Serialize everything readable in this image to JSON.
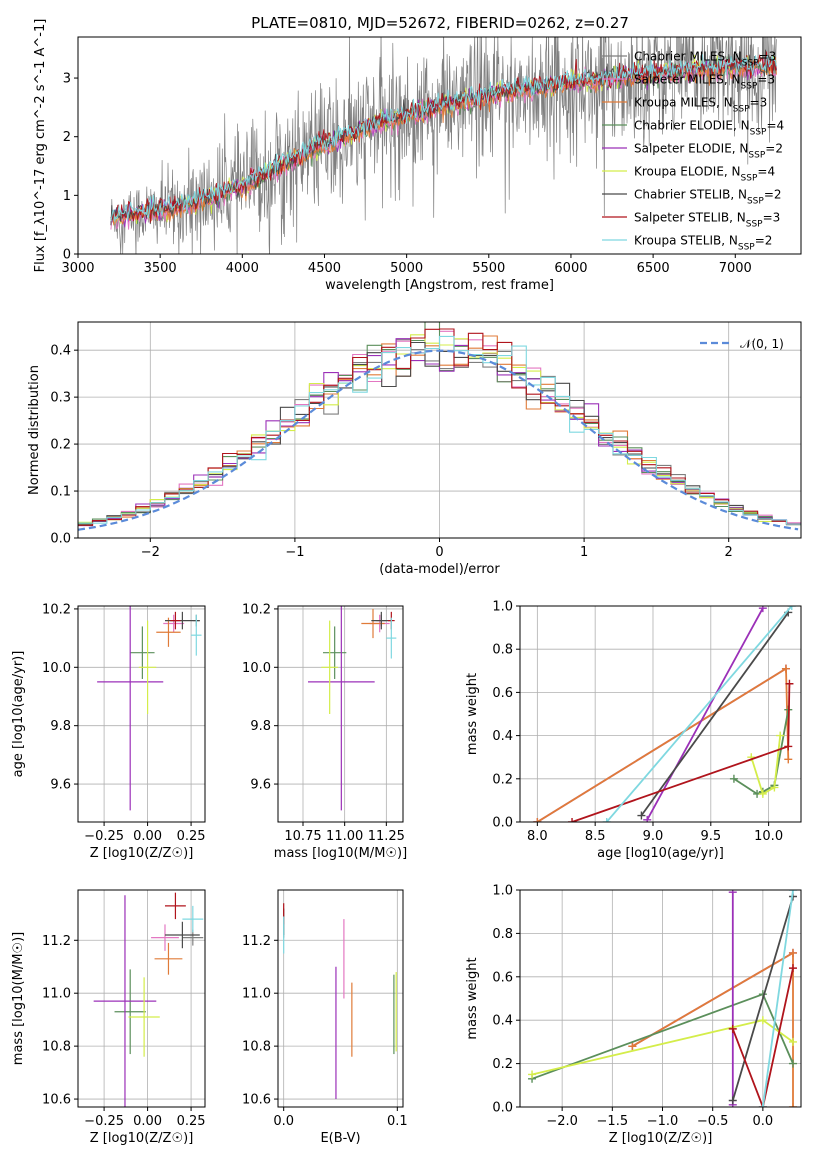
{
  "figure": {
    "title": "PLATE=0810, MJD=52672, FIBERID=0262, z=0.27"
  },
  "models": [
    {
      "name": "Chabrier MILES",
      "nssp": "3",
      "color": "#7f7f7f"
    },
    {
      "name": "Salpeter MILES",
      "nssp": "3",
      "color": "#e377c2"
    },
    {
      "name": "Kroupa MILES",
      "nssp": "3",
      "color": "#e07b39"
    },
    {
      "name": "Chabrier ELODIE",
      "nssp": "4",
      "color": "#5b8f5b"
    },
    {
      "name": "Salpeter ELODIE",
      "nssp": "2",
      "color": "#9b30b8"
    },
    {
      "name": "Kroupa ELODIE",
      "nssp": "4",
      "color": "#d4ed4a"
    },
    {
      "name": "Chabrier STELIB",
      "nssp": "2",
      "color": "#4a4a4a"
    },
    {
      "name": "Salpeter STELIB",
      "nssp": "3",
      "color": "#b0141c"
    },
    {
      "name": "Kroupa STELIB",
      "nssp": "2",
      "color": "#7fd8e0"
    }
  ],
  "chart_data": [
    {
      "id": "spectrum",
      "type": "line",
      "xlabel": "wavelength [Angstrom, rest frame]",
      "ylabel": "Flux [f_λ10^-17 erg cm^-2 s^-1 A^-1]",
      "xlim": [
        3000,
        7400
      ],
      "ylim": [
        0,
        3.7
      ],
      "xticks": [
        "3000",
        "3500",
        "4000",
        "4500",
        "5000",
        "5500",
        "6000",
        "6500",
        "7000"
      ],
      "yticks": [
        "0",
        "1",
        "2",
        "3"
      ],
      "x_range_data": [
        3200,
        7250
      ],
      "continuum": {
        "x": [
          3200,
          3600,
          4000,
          4400,
          4800,
          5200,
          5600,
          6000,
          6400,
          6800,
          7250
        ],
        "y": [
          0.62,
          0.78,
          1.15,
          1.75,
          2.2,
          2.5,
          2.75,
          2.92,
          3.05,
          3.15,
          3.2
        ]
      },
      "legend_position": "upper right"
    },
    {
      "id": "residuals",
      "type": "histogram",
      "xlabel": "(data-model)/error",
      "ylabel": "Normed distribution",
      "xlim": [
        -2.5,
        2.5
      ],
      "ylim": [
        0,
        0.46
      ],
      "xticks": [
        "−2",
        "−1",
        "0",
        "1",
        "2"
      ],
      "yticks": [
        "0.0",
        "0.1",
        "0.2",
        "0.3",
        "0.4"
      ],
      "bin_width": 0.1,
      "reference_curve": "𝒩(0, 1)",
      "reference_color": "#5b8bd9"
    },
    {
      "id": "age_vs_Z",
      "type": "errorbar",
      "xlabel": "Z [log10(Z/Z☉)]",
      "ylabel": "age [log10(age/yr)]",
      "xlim": [
        -0.4,
        0.33
      ],
      "ylim": [
        9.47,
        10.21
      ],
      "xticks": [
        "−0.25",
        "0.00",
        "0.25"
      ],
      "yticks": [
        "9.6",
        "9.8",
        "10.0",
        "10.2"
      ],
      "points": [
        {
          "model": 0,
          "x": 0.28,
          "xerr": 0.02,
          "y": 10.16,
          "yerr": 0.02
        },
        {
          "model": 1,
          "x": 0.15,
          "xerr": 0.06,
          "y": 10.15,
          "yerr": 0.03
        },
        {
          "model": 2,
          "x": 0.12,
          "xerr": 0.07,
          "y": 10.12,
          "yerr": 0.05
        },
        {
          "model": 3,
          "x": -0.03,
          "xerr": 0.07,
          "y": 10.05,
          "yerr": 0.09
        },
        {
          "model": 4,
          "x": -0.1,
          "xerr": 0.19,
          "y": 9.95,
          "yerr": 0.44
        },
        {
          "model": 5,
          "x": -0.0,
          "xerr": 0.05,
          "y": 10.0,
          "yerr": 0.16
        },
        {
          "model": 6,
          "x": 0.2,
          "xerr": 0.1,
          "y": 10.16,
          "yerr": 0.03
        },
        {
          "model": 7,
          "x": 0.16,
          "xerr": 0.03,
          "y": 10.16,
          "yerr": 0.03
        },
        {
          "model": 8,
          "x": 0.28,
          "xerr": 0.03,
          "y": 10.11,
          "yerr": 0.07
        }
      ]
    },
    {
      "id": "age_vs_mass",
      "type": "errorbar",
      "xlabel": "mass [log10(M/M☉)]",
      "ylabel": "",
      "xlim": [
        10.6,
        11.35
      ],
      "ylim": [
        9.47,
        10.21
      ],
      "xticks": [
        "10.75",
        "11.00",
        "11.25"
      ],
      "yticks": [
        "9.6",
        "9.8",
        "10.0",
        "10.2"
      ],
      "points": [
        {
          "model": 0,
          "x": 11.22,
          "xerr": 0.03,
          "y": 10.16,
          "yerr": 0.02
        },
        {
          "model": 1,
          "x": 11.21,
          "xerr": 0.06,
          "y": 10.15,
          "yerr": 0.03
        },
        {
          "model": 2,
          "x": 11.17,
          "xerr": 0.07,
          "y": 10.15,
          "yerr": 0.05
        },
        {
          "model": 3,
          "x": 10.94,
          "xerr": 0.07,
          "y": 10.05,
          "yerr": 0.09
        },
        {
          "model": 4,
          "x": 10.98,
          "xerr": 0.2,
          "y": 9.95,
          "yerr": 0.44
        },
        {
          "model": 5,
          "x": 10.91,
          "xerr": 0.05,
          "y": 10.0,
          "yerr": 0.16
        },
        {
          "model": 6,
          "x": 11.22,
          "xerr": 0.06,
          "y": 10.16,
          "yerr": 0.03
        },
        {
          "model": 7,
          "x": 11.28,
          "xerr": 0.02,
          "y": 10.16,
          "yerr": 0.03
        },
        {
          "model": 8,
          "x": 11.28,
          "xerr": 0.03,
          "y": 10.1,
          "yerr": 0.07
        }
      ]
    },
    {
      "id": "weight_vs_age",
      "type": "line",
      "xlabel": "age [log10(age/yr)]",
      "ylabel": "mass weight",
      "xlim": [
        7.85,
        10.28
      ],
      "ylim": [
        0,
        1.0
      ],
      "xticks": [
        "8.0",
        "8.5",
        "9.0",
        "9.5",
        "10.0"
      ],
      "yticks": [
        "0.0",
        "0.2",
        "0.4",
        "0.6",
        "0.8",
        "1.0"
      ],
      "series": [
        {
          "model": 0,
          "x": [
            8.0,
            10.15
          ],
          "y": [
            0.0,
            0.71
          ]
        },
        {
          "model": 1,
          "x": [
            8.0,
            10.15
          ],
          "y": [
            0.0,
            0.71
          ]
        },
        {
          "model": 2,
          "x": [
            8.0,
            10.15,
            10.17
          ],
          "y": [
            0.0,
            0.71,
            0.29
          ]
        },
        {
          "model": 3,
          "x": [
            9.7,
            9.9,
            9.95,
            10.05,
            10.17
          ],
          "y": [
            0.2,
            0.13,
            0.14,
            0.17,
            0.52
          ]
        },
        {
          "model": 4,
          "x": [
            8.95,
            9.95
          ],
          "y": [
            0.01,
            0.99
          ]
        },
        {
          "model": 5,
          "x": [
            9.85,
            9.95,
            10.05,
            10.1
          ],
          "y": [
            0.3,
            0.13,
            0.16,
            0.4
          ]
        },
        {
          "model": 6,
          "x": [
            8.9,
            10.17
          ],
          "y": [
            0.03,
            0.97
          ]
        },
        {
          "model": 7,
          "x": [
            8.3,
            10.17,
            10.18
          ],
          "y": [
            0.0,
            0.35,
            0.64
          ]
        },
        {
          "model": 8,
          "x": [
            8.6,
            10.2
          ],
          "y": [
            0.0,
            1.0
          ]
        }
      ]
    },
    {
      "id": "mass_vs_Z",
      "type": "errorbar",
      "xlabel": "Z [log10(Z/Z☉)]",
      "ylabel": "mass [log10(M/M☉)]",
      "xlim": [
        -0.4,
        0.33
      ],
      "ylim": [
        10.57,
        11.39
      ],
      "xticks": [
        "−0.25",
        "0.00",
        "0.25"
      ],
      "yticks": [
        "10.6",
        "10.8",
        "11.0",
        "11.2"
      ],
      "points": [
        {
          "model": 0,
          "x": 0.26,
          "xerr": 0.06,
          "y": 11.21,
          "yerr": 0.03
        },
        {
          "model": 1,
          "x": 0.1,
          "xerr": 0.08,
          "y": 11.21,
          "yerr": 0.05
        },
        {
          "model": 2,
          "x": 0.12,
          "xerr": 0.08,
          "y": 11.13,
          "yerr": 0.06
        },
        {
          "model": 3,
          "x": -0.1,
          "xerr": 0.09,
          "y": 10.93,
          "yerr": 0.16
        },
        {
          "model": 4,
          "x": -0.13,
          "xerr": 0.18,
          "y": 10.97,
          "yerr": 0.4
        },
        {
          "model": 5,
          "x": -0.02,
          "xerr": 0.09,
          "y": 10.91,
          "yerr": 0.15
        },
        {
          "model": 6,
          "x": 0.2,
          "xerr": 0.1,
          "y": 11.22,
          "yerr": 0.05
        },
        {
          "model": 7,
          "x": 0.16,
          "xerr": 0.06,
          "y": 11.33,
          "yerr": 0.05
        },
        {
          "model": 8,
          "x": 0.26,
          "xerr": 0.06,
          "y": 11.28,
          "yerr": 0.05
        }
      ]
    },
    {
      "id": "mass_vs_ebv",
      "type": "errorbar",
      "xlabel": "E(B-V)",
      "ylabel": "",
      "xlim": [
        -0.005,
        0.105
      ],
      "ylim": [
        10.57,
        11.39
      ],
      "xticks": [
        "0.0",
        "0.1"
      ],
      "yticks": [
        "10.6",
        "10.8",
        "11.0",
        "11.2"
      ],
      "points": [
        {
          "model": 0,
          "x": 0.0,
          "y": 11.25,
          "yerr": 0.04
        },
        {
          "model": 1,
          "x": 0.053,
          "y": 11.13,
          "yerr": 0.15
        },
        {
          "model": 2,
          "x": 0.06,
          "y": 10.9,
          "yerr": 0.14
        },
        {
          "model": 3,
          "x": 0.097,
          "y": 10.92,
          "yerr": 0.15
        },
        {
          "model": 4,
          "x": 0.046,
          "y": 10.85,
          "yerr": 0.25
        },
        {
          "model": 5,
          "x": 0.099,
          "y": 10.93,
          "yerr": 0.15
        },
        {
          "model": 6,
          "x": 0.0,
          "y": 11.27,
          "yerr": 0.05
        },
        {
          "model": 7,
          "x": 0.0,
          "y": 11.3,
          "yerr": 0.04
        },
        {
          "model": 8,
          "x": 0.0,
          "y": 11.22,
          "yerr": 0.07
        }
      ]
    },
    {
      "id": "weight_vs_Z",
      "type": "line",
      "xlabel": "Z [log10(Z/Z☉)]",
      "ylabel": "mass weight",
      "xlim": [
        -2.42,
        0.38
      ],
      "ylim": [
        0,
        1.0
      ],
      "xticks": [
        "−2.0",
        "−1.5",
        "−1.0",
        "−0.5",
        "0.0"
      ],
      "yticks": [
        "0.0",
        "0.2",
        "0.4",
        "0.6",
        "0.8",
        "1.0"
      ],
      "series": [
        {
          "model": 0,
          "x": [
            -1.3,
            0.3
          ],
          "y": [
            0.28,
            0.71
          ]
        },
        {
          "model": 1,
          "x": [
            -1.3,
            0.3
          ],
          "y": [
            0.28,
            0.71
          ]
        },
        {
          "model": 2,
          "x": [
            -1.3,
            0.3,
            0.3
          ],
          "y": [
            0.28,
            0.71,
            0.0
          ]
        },
        {
          "model": 3,
          "x": [
            -2.3,
            0.0,
            0.3
          ],
          "y": [
            0.13,
            0.52,
            0.2
          ]
        },
        {
          "model": 4,
          "x": [
            -0.3,
            -0.3
          ],
          "y": [
            0.01,
            0.99
          ]
        },
        {
          "model": 5,
          "x": [
            -2.3,
            0.0,
            0.3
          ],
          "y": [
            0.15,
            0.4,
            0.3
          ]
        },
        {
          "model": 6,
          "x": [
            -0.3,
            0.3
          ],
          "y": [
            0.03,
            0.97
          ]
        },
        {
          "model": 7,
          "x": [
            -0.3,
            0.0,
            0.3
          ],
          "y": [
            0.36,
            0.0,
            0.64
          ]
        },
        {
          "model": 8,
          "x": [
            0.0,
            0.3
          ],
          "y": [
            0.0,
            1.0
          ]
        }
      ]
    }
  ]
}
